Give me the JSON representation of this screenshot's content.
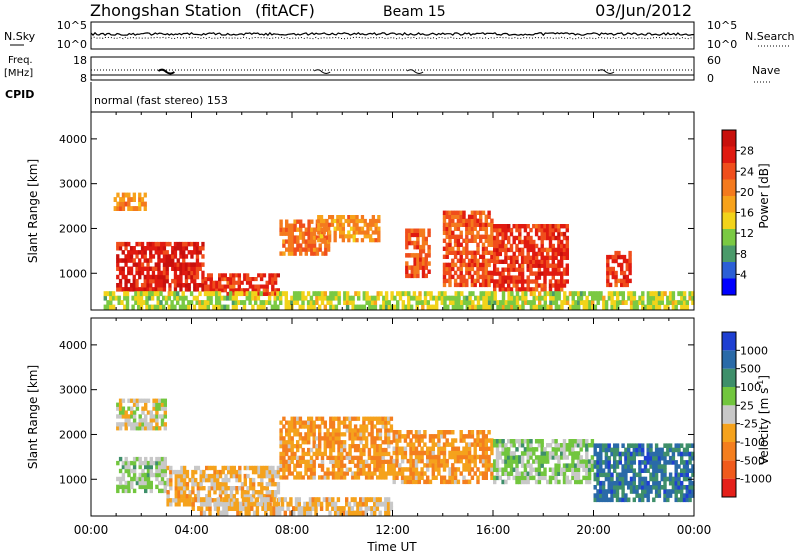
{
  "header": {
    "station": "Zhongshan Station",
    "mode": "(fitACF)",
    "beam": "Beam 15",
    "date": "03/Jun/2012"
  },
  "panels": {
    "nsky": {
      "label": "N.Sky",
      "right_label": "N.Search",
      "left_ticks": [
        "10^5",
        "10^0"
      ],
      "right_ticks": [
        "10^5",
        "10^0"
      ]
    },
    "freq": {
      "label_top": "Freq.",
      "label_units": "[MHz]",
      "left_ticks": [
        "18",
        "8"
      ],
      "right_ticks": [
        "60",
        "0"
      ],
      "right_label": "Nave"
    },
    "cpid": {
      "label": "CPID",
      "value": "normal (fast stereo) 153"
    }
  },
  "power": {
    "ylabel": "Slant Range [km]",
    "yticks": [
      "4000",
      "3000",
      "2000",
      "1000"
    ],
    "colorbar_label": "Power [dB]",
    "colorbar_ticks": [
      "28",
      "24",
      "20",
      "16",
      "12",
      "8",
      "4"
    ],
    "colors": [
      "#0000ff",
      "#2b5fd6",
      "#4a9a6a",
      "#7ac943",
      "#f2d31a",
      "#f7a21b",
      "#f47a1e",
      "#f04e1c",
      "#e01a10",
      "#c8100c"
    ]
  },
  "velocity": {
    "ylabel": "Slant Range [km]",
    "yticks": [
      "4000",
      "3000",
      "2000",
      "1000"
    ],
    "colorbar_label": "Velocity [m s",
    "colorbar_sup": "-1",
    "colorbar_label_end": "]",
    "colorbar_ticks": [
      "1000",
      "500",
      "100",
      "25",
      "-25",
      "-100",
      "-500",
      "-1000"
    ],
    "colors": [
      "#1e3fd2",
      "#2a6aa8",
      "#3e8f6a",
      "#72c63e",
      "#c8c8c8",
      "#f5a21c",
      "#f47e1e",
      "#f05a1c",
      "#e5201a"
    ]
  },
  "xaxis": {
    "label": "Time UT",
    "ticks": [
      "00:00",
      "04:00",
      "08:00",
      "12:00",
      "16:00",
      "20:00",
      "00:00"
    ]
  },
  "chart_data": [
    {
      "type": "heatmap",
      "title": "Power",
      "xlabel": "Time UT",
      "ylabel": "Slant Range [km]",
      "xlim_hours": [
        0,
        24
      ],
      "ylim": [
        180,
        4600
      ],
      "colorbar": "Power [dB]",
      "clim": [
        0,
        30
      ],
      "regions": [
        {
          "t": [
            0.9,
            2.2
          ],
          "r": [
            2400,
            2800
          ],
          "v": 18
        },
        {
          "t": [
            1.0,
            4.5
          ],
          "r": [
            600,
            1700
          ],
          "v": 26
        },
        {
          "t": [
            4.5,
            7.5
          ],
          "r": [
            500,
            1000
          ],
          "v": 24
        },
        {
          "t": [
            7.5,
            9.5
          ],
          "r": [
            1400,
            2200
          ],
          "v": 20
        },
        {
          "t": [
            9.0,
            11.5
          ],
          "r": [
            1700,
            2300
          ],
          "v": 18
        },
        {
          "t": [
            12.5,
            13.5
          ],
          "r": [
            900,
            2000
          ],
          "v": 22
        },
        {
          "t": [
            14.0,
            16.0
          ],
          "r": [
            700,
            2400
          ],
          "v": 22
        },
        {
          "t": [
            16.0,
            19.0
          ],
          "r": [
            600,
            2100
          ],
          "v": 24
        },
        {
          "t": [
            20.5,
            21.5
          ],
          "r": [
            700,
            1500
          ],
          "v": 24
        },
        {
          "t": [
            0.5,
            24.0
          ],
          "r": [
            200,
            600
          ],
          "v": 12
        }
      ]
    },
    {
      "type": "heatmap",
      "title": "Velocity",
      "xlabel": "Time UT",
      "ylabel": "Slant Range [km]",
      "xlim_hours": [
        0,
        24
      ],
      "ylim": [
        180,
        4600
      ],
      "colorbar": "Velocity [m s-1]",
      "clim": [
        -1000,
        1000
      ],
      "regions": [
        {
          "t": [
            1.0,
            3.0
          ],
          "r": [
            2100,
            2800
          ],
          "v": 0
        },
        {
          "t": [
            1.0,
            3.0
          ],
          "r": [
            700,
            1500
          ],
          "v": 150
        },
        {
          "t": [
            3.0,
            7.5
          ],
          "r": [
            400,
            1300
          ],
          "v": -150
        },
        {
          "t": [
            7.5,
            12.0
          ],
          "r": [
            1000,
            2400
          ],
          "v": -300
        },
        {
          "t": [
            12.0,
            16.0
          ],
          "r": [
            900,
            2100
          ],
          "v": -300
        },
        {
          "t": [
            16.0,
            20.0
          ],
          "r": [
            900,
            1900
          ],
          "v": 150
        },
        {
          "t": [
            20.0,
            24.0
          ],
          "r": [
            500,
            1800
          ],
          "v": 600
        },
        {
          "t": [
            4.0,
            12.0
          ],
          "r": [
            200,
            600
          ],
          "v": -150
        }
      ]
    }
  ]
}
